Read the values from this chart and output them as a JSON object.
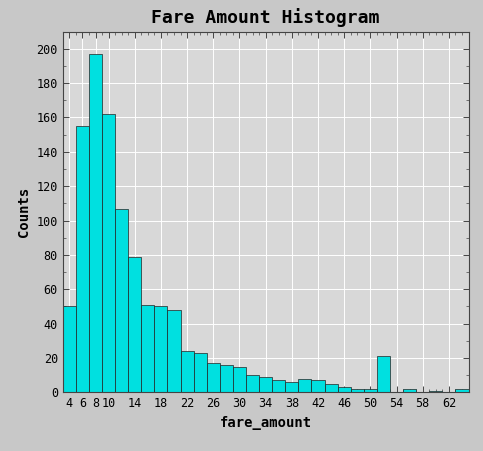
{
  "title": "Fare Amount Histogram",
  "xlabel": "fare_amount",
  "ylabel": "Counts",
  "background_color": "#c8c8c8",
  "plot_bg_color": "#d8d8d8",
  "bar_color": "#00e0e0",
  "bar_edge_color": "#222222",
  "bin_edges": [
    3,
    5,
    7,
    9,
    11,
    13,
    15,
    17,
    19,
    21,
    23,
    25,
    27,
    29,
    31,
    33,
    35,
    37,
    39,
    41,
    43,
    45,
    47,
    49,
    51,
    53,
    55,
    57,
    59,
    61,
    63,
    65
  ],
  "counts": [
    50,
    155,
    197,
    162,
    107,
    79,
    51,
    50,
    48,
    24,
    23,
    17,
    16,
    15,
    10,
    9,
    7,
    6,
    8,
    7,
    5,
    3,
    2,
    2,
    21,
    0,
    2,
    0,
    1,
    0,
    2
  ],
  "xtick_labels": [
    "4",
    "6",
    "8",
    "10",
    "14",
    "18",
    "22",
    "26",
    "30",
    "34",
    "38",
    "42",
    "46",
    "50",
    "54",
    "58",
    "62"
  ],
  "xtick_positions": [
    4,
    6,
    8,
    10,
    14,
    18,
    22,
    26,
    30,
    34,
    38,
    42,
    46,
    50,
    54,
    58,
    62
  ],
  "ytick_labels": [
    "0",
    "20",
    "40",
    "60",
    "80",
    "100",
    "120",
    "140",
    "160",
    "180",
    "200"
  ],
  "ytick_values": [
    0,
    20,
    40,
    60,
    80,
    100,
    120,
    140,
    160,
    180,
    200
  ],
  "ylim": [
    0,
    210
  ],
  "xlim": [
    3,
    65
  ],
  "title_fontsize": 13,
  "label_fontsize": 10,
  "tick_fontsize": 8.5
}
